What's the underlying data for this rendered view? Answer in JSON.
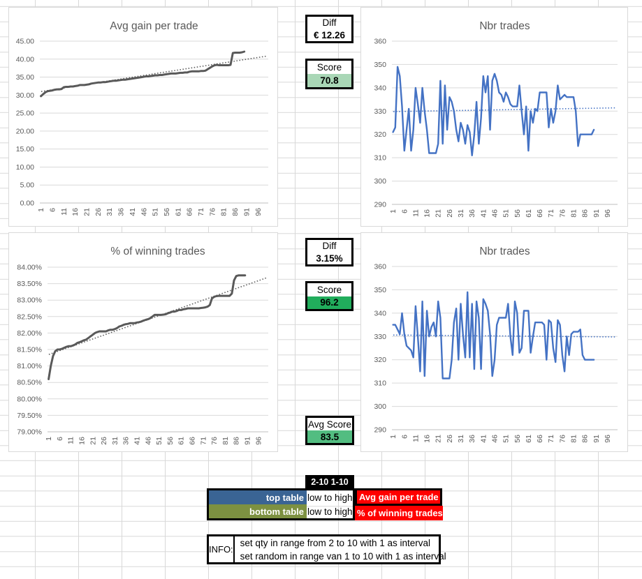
{
  "boxes": {
    "diff_top": {
      "label": "Diff",
      "value": "€ 12.26"
    },
    "score_top": {
      "label": "Score",
      "value": "70.8",
      "value_bg": "#A9D7B6"
    },
    "diff_bot": {
      "label": "Diff",
      "value": "3.15%"
    },
    "score_bot": {
      "label": "Score",
      "value": "96.2",
      "value_bg": "#21AD5C"
    },
    "avg_score": {
      "label": "Avg Score",
      "value": "83.5",
      "value_bg": "#52BD81"
    }
  },
  "legend": {
    "range_label": "2-10 1-10",
    "rows": [
      {
        "table": "top table",
        "table_bg": "#3A6494",
        "order": "low to high",
        "metric": "Avg gain per trade",
        "metric_bg": "#FF0000"
      },
      {
        "table": "bottom table",
        "table_bg": "#7D9141",
        "order": "low to high",
        "metric": "% of winning trades",
        "metric_bg": "#FF0000"
      }
    ]
  },
  "info": {
    "label": "INFO:",
    "lines": [
      "set qty in range from 2 to 10 with 1 as interval",
      "set random in range van 1 to 10 with 1 as interval"
    ]
  },
  "chart_data": [
    {
      "type": "line",
      "title": "Avg gain per trade",
      "ylim": [
        0,
        45
      ],
      "y_tick_labels": [
        "0.00",
        "5.00",
        "10.00",
        "15.00",
        "20.00",
        "25.00",
        "30.00",
        "35.00",
        "40.00",
        "45.00"
      ],
      "x_tick_labels": [
        "1",
        "6",
        "11",
        "16",
        "21",
        "26",
        "31",
        "36",
        "41",
        "46",
        "51",
        "56",
        "61",
        "66",
        "71",
        "76",
        "81",
        "86",
        "91",
        "96"
      ],
      "line_color": "#595959",
      "trend_color": "#595959",
      "trend": {
        "y1": 31.0,
        "y2": 40.85
      },
      "values": [
        29.7,
        30.3,
        30.8,
        31.1,
        31.2,
        31.3,
        31.5,
        31.6,
        31.6,
        31.7,
        32.2,
        32.3,
        32.3,
        32.4,
        32.4,
        32.5,
        32.6,
        32.8,
        32.8,
        32.8,
        32.9,
        33.0,
        33.2,
        33.3,
        33.4,
        33.5,
        33.5,
        33.6,
        33.6,
        33.7,
        33.8,
        33.9,
        34.0,
        34.0,
        34.1,
        34.2,
        34.3,
        34.3,
        34.4,
        34.5,
        34.6,
        34.7,
        34.8,
        34.9,
        35.0,
        35.1,
        35.2,
        35.2,
        35.3,
        35.4,
        35.5,
        35.5,
        35.6,
        35.6,
        35.7,
        35.8,
        35.9,
        36.0,
        36.0,
        36.0,
        36.1,
        36.2,
        36.2,
        36.3,
        36.3,
        36.5,
        36.6,
        36.6,
        36.6,
        36.6,
        36.7,
        36.7,
        36.8,
        37.2,
        37.6,
        38.0,
        38.3,
        38.4,
        38.3,
        38.3,
        38.3,
        38.3,
        38.3,
        38.4,
        41.7,
        41.8,
        41.8,
        41.8,
        41.9,
        42.1
      ]
    },
    {
      "type": "line",
      "title": "Nbr trades",
      "ylim": [
        290,
        360
      ],
      "y_tick_labels": [
        "290",
        "300",
        "310",
        "320",
        "330",
        "340",
        "350",
        "360"
      ],
      "x_tick_labels": [
        "1",
        "6",
        "11",
        "16",
        "21",
        "26",
        "31",
        "36",
        "41",
        "46",
        "51",
        "56",
        "61",
        "66",
        "71",
        "76",
        "81",
        "86",
        "91",
        "96"
      ],
      "line_color": "#4472C4",
      "trend_color": "#4472C4",
      "trend": {
        "y1": 329.8,
        "y2": 331.4
      },
      "values": [
        321,
        323,
        349,
        345,
        332,
        313,
        322,
        331,
        313,
        322,
        340,
        333,
        325,
        340,
        330,
        322,
        312,
        312,
        312,
        312,
        316,
        343,
        316,
        341,
        322,
        336,
        334,
        330,
        322,
        317,
        325,
        322,
        316,
        324,
        321,
        311,
        320,
        334,
        316,
        327,
        345,
        338,
        345,
        322,
        343,
        346,
        343,
        338,
        337,
        334,
        338,
        336,
        333,
        332,
        332,
        332,
        341,
        330,
        320,
        332,
        313,
        330,
        325,
        331,
        330,
        338,
        338,
        338,
        338,
        323,
        331,
        325,
        330,
        341,
        335,
        336,
        337,
        336,
        336,
        336,
        336,
        330,
        315,
        320,
        320,
        320,
        320,
        320,
        320,
        322
      ]
    },
    {
      "type": "line",
      "title": "% of winning trades",
      "ylim": [
        79,
        84
      ],
      "y_tick_labels": [
        "79.00%",
        "79.50%",
        "80.00%",
        "80.50%",
        "81.00%",
        "81.50%",
        "82.00%",
        "82.50%",
        "83.00%",
        "83.50%",
        "84.00%"
      ],
      "x_tick_labels": [
        "1",
        "6",
        "11",
        "16",
        "21",
        "26",
        "31",
        "36",
        "41",
        "46",
        "51",
        "56",
        "61",
        "66",
        "71",
        "76",
        "81",
        "86",
        "91",
        "96"
      ],
      "line_color": "#595959",
      "trend_color": "#595959",
      "trend": {
        "y1": 81.35,
        "y2": 83.68
      },
      "values": [
        80.6,
        81.0,
        81.3,
        81.45,
        81.5,
        81.5,
        81.52,
        81.55,
        81.58,
        81.6,
        81.6,
        81.62,
        81.65,
        81.7,
        81.72,
        81.75,
        81.78,
        81.8,
        81.85,
        81.9,
        81.95,
        82.0,
        82.03,
        82.05,
        82.05,
        82.05,
        82.05,
        82.08,
        82.1,
        82.1,
        82.12,
        82.15,
        82.2,
        82.22,
        82.25,
        82.27,
        82.28,
        82.3,
        82.3,
        82.3,
        82.32,
        82.33,
        82.35,
        82.38,
        82.4,
        82.42,
        82.45,
        82.5,
        82.55,
        82.55,
        82.55,
        82.55,
        82.56,
        82.57,
        82.6,
        82.62,
        82.65,
        82.65,
        82.67,
        82.7,
        82.7,
        82.72,
        82.73,
        82.75,
        82.75,
        82.75,
        82.75,
        82.75,
        82.75,
        82.76,
        82.77,
        82.78,
        82.8,
        82.85,
        83.05,
        83.1,
        83.12,
        83.13,
        83.13,
        83.13,
        83.13,
        83.13,
        83.13,
        83.2,
        83.6,
        83.73,
        83.75,
        83.75,
        83.75,
        83.75
      ]
    },
    {
      "type": "line",
      "title": "Nbr trades",
      "ylim": [
        290,
        360
      ],
      "y_tick_labels": [
        "290",
        "300",
        "310",
        "320",
        "330",
        "340",
        "350",
        "360"
      ],
      "x_tick_labels": [
        "1",
        "6",
        "11",
        "16",
        "21",
        "26",
        "31",
        "36",
        "41",
        "46",
        "51",
        "56",
        "61",
        "66",
        "71",
        "76",
        "81",
        "86",
        "91",
        "96"
      ],
      "line_color": "#4472C4",
      "trend_color": "#4472C4",
      "trend": {
        "y1": 330.6,
        "y2": 329.8
      },
      "values": [
        335,
        335,
        333,
        331,
        340,
        331,
        326,
        325,
        324,
        321,
        343,
        330,
        315,
        345,
        313,
        341,
        330,
        334,
        336,
        330,
        345,
        338,
        312,
        312,
        312,
        312,
        320,
        336,
        342,
        320,
        344,
        331,
        321,
        349,
        321,
        344,
        316,
        345,
        338,
        316,
        346,
        344,
        341,
        331,
        313,
        320,
        335,
        338,
        338,
        338,
        338,
        344,
        330,
        322,
        345,
        340,
        323,
        325,
        341,
        341,
        341,
        323,
        330,
        336,
        336,
        336,
        336,
        335,
        320,
        337,
        336,
        325,
        319,
        337,
        335,
        322,
        315,
        330,
        322,
        331,
        332,
        332,
        332,
        333,
        322,
        320,
        320,
        320,
        320,
        320
      ]
    }
  ]
}
